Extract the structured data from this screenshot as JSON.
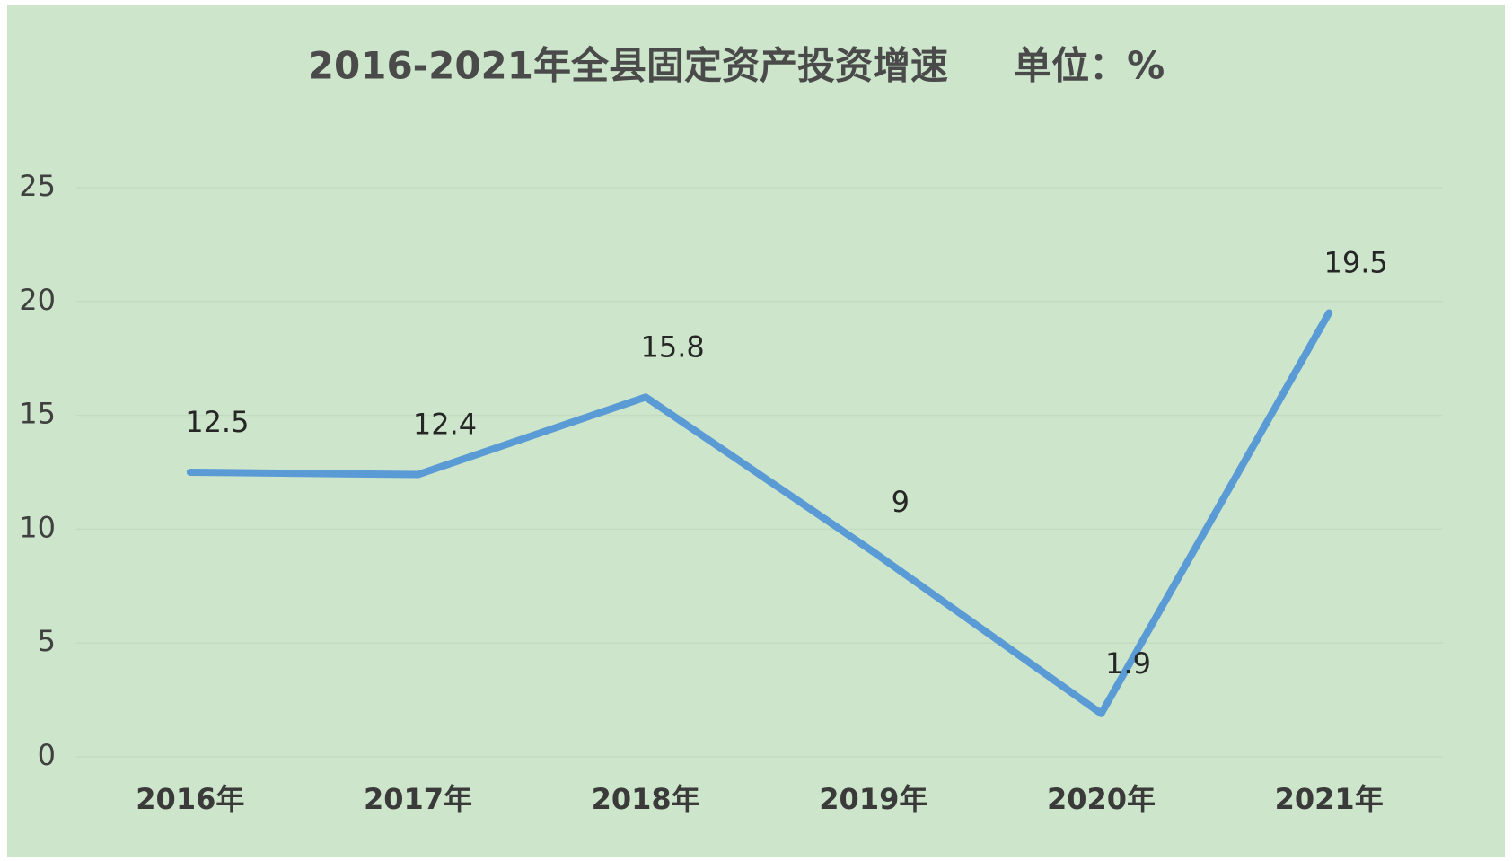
{
  "chart_data": {
    "type": "line",
    "title": "2016-2021年全县固定资产投资增速     单位：%",
    "categories": [
      "2016年",
      "2017年",
      "2018年",
      "2019年",
      "2020年",
      "2021年"
    ],
    "series": [
      {
        "name": "全县固定资产投资增速",
        "color": "#5b9bd5",
        "values": [
          12.5,
          12.4,
          15.8,
          9,
          1.9,
          19.5
        ]
      }
    ],
    "ylim": [
      0,
      25
    ],
    "yticks": [
      0,
      5,
      10,
      15,
      20,
      25
    ],
    "grid": true
  }
}
